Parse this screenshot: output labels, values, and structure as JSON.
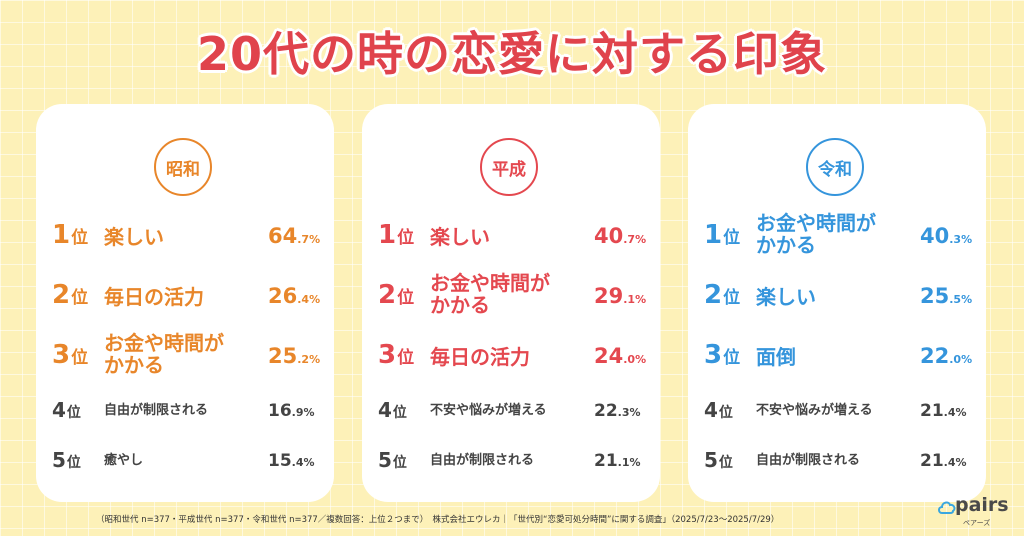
{
  "title": "20代の時の恋愛に対する印象",
  "colors": {
    "showa": "#e8862a",
    "heisei": "#e4484f",
    "reiwa": "#3595dc",
    "other": "#444444",
    "title": "#e0434c"
  },
  "cards": [
    {
      "era": "昭和",
      "rows": [
        {
          "rank": "1",
          "unit": "位",
          "item": "楽しい",
          "vi": "64",
          "vf": ".7%"
        },
        {
          "rank": "2",
          "unit": "位",
          "item": "毎日の活力",
          "vi": "26",
          "vf": ".4%"
        },
        {
          "rank": "3",
          "unit": "位",
          "item1": "お金や時間が",
          "item2": "かかる",
          "vi": "25",
          "vf": ".2%"
        },
        {
          "rank": "4",
          "unit": "位",
          "item": "自由が制限される",
          "vi": "16",
          "vf": ".9%"
        },
        {
          "rank": "5",
          "unit": "位",
          "item": "癒やし",
          "vi": "15",
          "vf": ".4%"
        }
      ]
    },
    {
      "era": "平成",
      "rows": [
        {
          "rank": "1",
          "unit": "位",
          "item": "楽しい",
          "vi": "40",
          "vf": ".7%"
        },
        {
          "rank": "2",
          "unit": "位",
          "item1": "お金や時間が",
          "item2": "かかる",
          "vi": "29",
          "vf": ".1%"
        },
        {
          "rank": "3",
          "unit": "位",
          "item": "毎日の活力",
          "vi": "24",
          "vf": ".0%"
        },
        {
          "rank": "4",
          "unit": "位",
          "item": "不安や悩みが増える",
          "vi": "22",
          "vf": ".3%"
        },
        {
          "rank": "5",
          "unit": "位",
          "item": "自由が制限される",
          "vi": "21",
          "vf": ".1%"
        }
      ]
    },
    {
      "era": "令和",
      "rows": [
        {
          "rank": "1",
          "unit": "位",
          "item1": "お金や時間が",
          "item2": "かかる",
          "vi": "40",
          "vf": ".3%"
        },
        {
          "rank": "2",
          "unit": "位",
          "item": "楽しい",
          "vi": "25",
          "vf": ".5%"
        },
        {
          "rank": "3",
          "unit": "位",
          "item": "面倒",
          "vi": "22",
          "vf": ".0%"
        },
        {
          "rank": "4",
          "unit": "位",
          "item": "不安や悩みが増える",
          "vi": "21",
          "vf": ".4%"
        },
        {
          "rank": "5",
          "unit": "位",
          "item": "自由が制限される",
          "vi": "21",
          "vf": ".4%"
        }
      ]
    }
  ],
  "footer": "（昭和世代 n=377・平成世代 n=377・令和世代 n=377／複数回答：上位２つまで）　株式会社エウレカ｜「世代別“恋愛可処分時間”に関する調査」（2025/7/23～2025/7/29）",
  "logo": {
    "word": "pairs",
    "sub": "ペアーズ",
    "icon": "cloud-icon"
  }
}
